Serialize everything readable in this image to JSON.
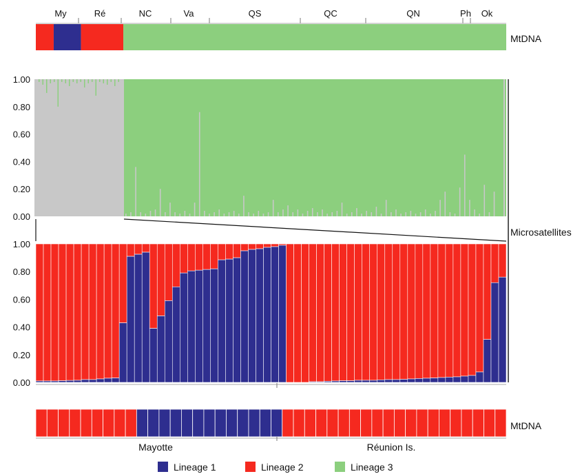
{
  "colors": {
    "lineage1": "#2e2e8f",
    "lineage2": "#f5291f",
    "lineage3": "#8ccf7e",
    "other": "#c8c8c8"
  },
  "labels": {
    "mtdna_top": "MtDNA",
    "mtdna_bottom": "MtDNA",
    "microsatellites": "Microsatellites"
  },
  "chart_data": [
    {
      "type": "bar",
      "name": "mtdna-top-strip",
      "population_labels": [
        "My",
        "Ré",
        "NC",
        "Va",
        "QS",
        "QC",
        "QN",
        "Ph",
        "Ok"
      ],
      "segments": [
        {
          "lineage": "Lineage 2",
          "fraction": 0.038
        },
        {
          "lineage": "Lineage 1",
          "fraction": 0.058
        },
        {
          "lineage": "Lineage 2",
          "fraction": 0.09
        },
        {
          "lineage": "Lineage 3",
          "fraction": 0.814
        }
      ]
    },
    {
      "type": "bar",
      "name": "microsatellites-all-populations",
      "ylim": [
        0,
        1
      ],
      "yticks": [
        "0.00",
        "0.20",
        "0.40",
        "0.60",
        "0.80",
        "1.00"
      ],
      "note_left_fraction_grey": 0.19,
      "spikes": [
        0.02,
        0.03,
        0.36,
        0.03,
        0.02,
        0.04,
        0.05,
        0.2,
        0.03,
        0.1,
        0.03,
        0.02,
        0.04,
        0.02,
        0.1,
        0.76,
        0.04,
        0.02,
        0.03,
        0.05,
        0.02,
        0.03,
        0.04,
        0.02,
        0.15,
        0.03,
        0.02,
        0.04,
        0.02,
        0.03,
        0.12,
        0.03,
        0.05,
        0.08,
        0.03,
        0.05,
        0.02,
        0.04,
        0.06,
        0.03,
        0.05,
        0.02,
        0.03,
        0.04,
        0.1,
        0.02,
        0.03,
        0.06,
        0.02,
        0.04,
        0.03,
        0.07,
        0.02,
        0.12,
        0.03,
        0.05,
        0.02,
        0.03,
        0.04,
        0.02,
        0.03,
        0.05,
        0.02,
        0.04,
        0.12,
        0.18,
        0.03,
        0.02,
        0.21,
        0.45,
        0.12,
        0.05,
        0.02,
        0.23,
        0.03,
        0.18,
        1.0
      ]
    },
    {
      "type": "bar",
      "name": "microsatellites-mayotte-reunion",
      "ylim": [
        0,
        1
      ],
      "yticks": [
        "0.00",
        "0.20",
        "0.40",
        "0.60",
        "0.80",
        "1.00"
      ],
      "series": [
        {
          "name": "Lineage 1",
          "values": [
            0.01,
            0.01,
            0.01,
            0.012,
            0.014,
            0.015,
            0.02,
            0.02,
            0.025,
            0.03,
            0.032,
            0.43,
            0.91,
            0.925,
            0.94,
            0.39,
            0.48,
            0.59,
            0.69,
            0.79,
            0.805,
            0.81,
            0.815,
            0.82,
            0.885,
            0.89,
            0.9,
            0.95,
            0.96,
            0.965,
            0.975,
            0.98,
            0.99,
            0.0,
            0.0,
            0.0,
            0.005,
            0.005,
            0.008,
            0.01,
            0.012,
            0.012,
            0.015,
            0.015,
            0.015,
            0.018,
            0.02,
            0.02,
            0.022,
            0.025,
            0.028,
            0.03,
            0.032,
            0.035,
            0.038,
            0.04,
            0.045,
            0.05,
            0.075,
            0.31,
            0.72,
            0.76
          ]
        },
        {
          "name": "Lineage 2",
          "values": [
            0.99,
            0.99,
            0.99,
            0.988,
            0.986,
            0.985,
            0.98,
            0.98,
            0.975,
            0.97,
            0.968,
            0.57,
            0.09,
            0.075,
            0.06,
            0.61,
            0.52,
            0.41,
            0.31,
            0.21,
            0.195,
            0.19,
            0.185,
            0.18,
            0.115,
            0.11,
            0.1,
            0.05,
            0.04,
            0.035,
            0.025,
            0.02,
            0.01,
            1.0,
            1.0,
            1.0,
            0.995,
            0.995,
            0.992,
            0.99,
            0.988,
            0.988,
            0.985,
            0.985,
            0.985,
            0.982,
            0.98,
            0.98,
            0.978,
            0.975,
            0.972,
            0.97,
            0.968,
            0.965,
            0.962,
            0.96,
            0.955,
            0.95,
            0.925,
            0.69,
            0.28,
            0.24
          ]
        }
      ]
    },
    {
      "type": "bar",
      "name": "mtdna-bottom-strip",
      "categories": [
        "Mayotte",
        "Réunion Is."
      ],
      "segments": [
        {
          "lineage": "Lineage 2",
          "fraction": 0.207
        },
        {
          "lineage": "Lineage 1",
          "fraction": 0.307
        },
        {
          "lineage": "Lineage 2",
          "fraction": 0.486
        }
      ],
      "cells": 42
    }
  ],
  "legend": [
    {
      "label": "Lineage 1",
      "color": "#2e2e8f"
    },
    {
      "label": "Lineage 2",
      "color": "#f5291f"
    },
    {
      "label": "Lineage 3",
      "color": "#8ccf7e"
    }
  ]
}
